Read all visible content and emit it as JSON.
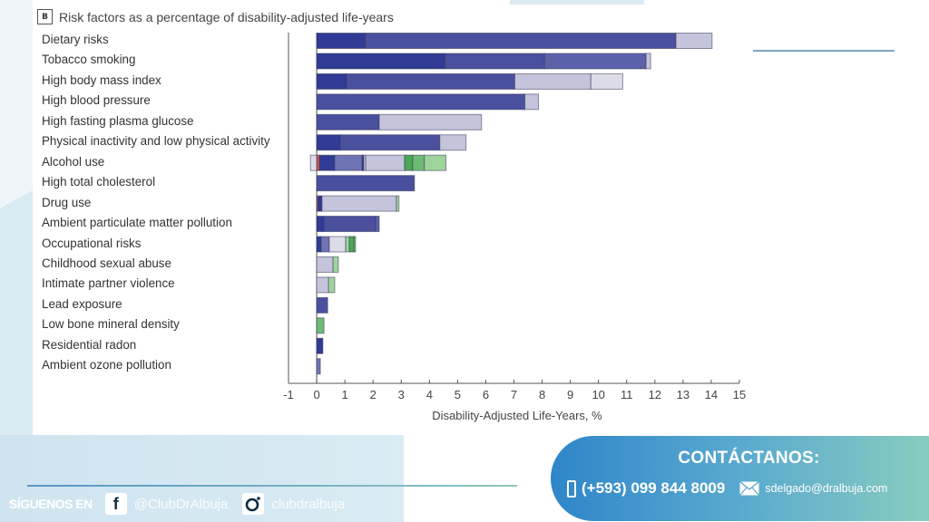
{
  "panel_label": "B",
  "chart_data": {
    "type": "bar",
    "orientation": "horizontal",
    "stacked": true,
    "title": "Risk factors as a percentage of disability-adjusted life-years",
    "xlabel": "Disability-Adjusted Life-Years, %",
    "ylabel": "",
    "xlim": [
      -1,
      15
    ],
    "xticks": [
      "-1",
      "0",
      "1",
      "2",
      "3",
      "4",
      "5",
      "6",
      "7",
      "8",
      "9",
      "10",
      "11",
      "12",
      "13",
      "14",
      "15"
    ],
    "grid": false,
    "categories": [
      "Dietary risks",
      "Tobacco smoking",
      "High body mass index",
      "High blood pressure",
      "High fasting plasma glucose",
      "Physical inactivity and low physical activity",
      "Alcohol use",
      "High total cholesterol",
      "Drug use",
      "Ambient particulate matter pollution",
      "Occupational risks",
      "Childhood sexual abuse",
      "Intimate partner violence",
      "Lead exposure",
      "Low bone mineral density",
      "Residential radon",
      "Ambient ozone pollution"
    ],
    "colors": {
      "dark_blue": "#2f3b94",
      "blue": "#4a4f9e",
      "mid_blue": "#5b62aa",
      "periwinkle": "#6f74b4",
      "lavender": "#c4c4dc",
      "light_lavender": "#dcdce8",
      "red": "#d0524a",
      "green": "#4aa856",
      "mid_green": "#6dbb74",
      "light_green": "#9fd39c"
    },
    "segments": [
      [
        {
          "from": 0,
          "to": 1.73,
          "color": "dark_blue"
        },
        {
          "from": 1.73,
          "to": 12.75,
          "color": "blue"
        },
        {
          "from": 12.75,
          "to": 14.03,
          "color": "lavender"
        }
      ],
      [
        {
          "from": 0,
          "to": 4.56,
          "color": "dark_blue"
        },
        {
          "from": 4.56,
          "to": 8.09,
          "color": "blue"
        },
        {
          "from": 8.09,
          "to": 11.69,
          "color": "mid_blue"
        },
        {
          "from": 11.69,
          "to": 11.85,
          "color": "lavender"
        }
      ],
      [
        {
          "from": 0,
          "to": 1.06,
          "color": "dark_blue"
        },
        {
          "from": 1.06,
          "to": 7.03,
          "color": "blue"
        },
        {
          "from": 7.03,
          "to": 9.73,
          "color": "lavender"
        },
        {
          "from": 9.73,
          "to": 10.86,
          "color": "light_lavender"
        }
      ],
      [
        {
          "from": 0,
          "to": 7.39,
          "color": "blue"
        },
        {
          "from": 7.39,
          "to": 7.87,
          "color": "lavender"
        }
      ],
      [
        {
          "from": 0,
          "to": 2.22,
          "color": "blue"
        },
        {
          "from": 2.22,
          "to": 5.85,
          "color": "lavender"
        }
      ],
      [
        {
          "from": 0,
          "to": 0.84,
          "color": "dark_blue"
        },
        {
          "from": 0.84,
          "to": 4.37,
          "color": "blue"
        },
        {
          "from": 4.37,
          "to": 5.3,
          "color": "lavender"
        }
      ],
      [
        {
          "from": -0.22,
          "to": 0,
          "color": "light_lavender"
        },
        {
          "from": 0,
          "to": 0.1,
          "color": "red"
        },
        {
          "from": 0.1,
          "to": 0.64,
          "color": "dark_blue"
        },
        {
          "from": 0.64,
          "to": 1.61,
          "color": "periwinkle"
        },
        {
          "from": 1.61,
          "to": 1.67,
          "color": "dark_blue"
        },
        {
          "from": 1.67,
          "to": 1.74,
          "color": "lavender"
        },
        {
          "from": 1.74,
          "to": 3.12,
          "color": "lavender"
        },
        {
          "from": 3.12,
          "to": 3.41,
          "color": "green"
        },
        {
          "from": 3.41,
          "to": 3.82,
          "color": "mid_green"
        },
        {
          "from": 3.82,
          "to": 4.59,
          "color": "light_green"
        }
      ],
      [
        {
          "from": 0,
          "to": 3.47,
          "color": "blue"
        }
      ],
      [
        {
          "from": 0,
          "to": 0.04,
          "color": "red"
        },
        {
          "from": 0.04,
          "to": 0.19,
          "color": "dark_blue"
        },
        {
          "from": 0.19,
          "to": 2.83,
          "color": "lavender"
        },
        {
          "from": 2.83,
          "to": 2.92,
          "color": "light_green"
        }
      ],
      [
        {
          "from": 0,
          "to": 0.26,
          "color": "dark_blue"
        },
        {
          "from": 0.26,
          "to": 2.09,
          "color": "blue"
        },
        {
          "from": 2.09,
          "to": 2.22,
          "color": "mid_blue"
        }
      ],
      [
        {
          "from": 0,
          "to": 0.16,
          "color": "dark_blue"
        },
        {
          "from": 0.16,
          "to": 0.45,
          "color": "periwinkle"
        },
        {
          "from": 0.45,
          "to": 1.03,
          "color": "light_lavender"
        },
        {
          "from": 1.03,
          "to": 1.16,
          "color": "light_green"
        },
        {
          "from": 1.16,
          "to": 1.32,
          "color": "green"
        },
        {
          "from": 1.32,
          "to": 1.38,
          "color": "mid_green"
        }
      ],
      [
        {
          "from": 0,
          "to": 0.58,
          "color": "lavender"
        },
        {
          "from": 0.58,
          "to": 0.77,
          "color": "light_green"
        }
      ],
      [
        {
          "from": 0,
          "to": 0.42,
          "color": "lavender"
        },
        {
          "from": 0.42,
          "to": 0.64,
          "color": "light_green"
        }
      ],
      [
        {
          "from": 0,
          "to": 0.39,
          "color": "blue"
        }
      ],
      [
        {
          "from": 0,
          "to": 0.26,
          "color": "mid_green"
        }
      ],
      [
        {
          "from": 0,
          "to": 0.22,
          "color": "dark_blue"
        }
      ],
      [
        {
          "from": 0,
          "to": 0.13,
          "color": "periwinkle"
        }
      ]
    ],
    "totals": [
      14.03,
      11.85,
      10.86,
      7.87,
      5.85,
      5.3,
      4.59,
      3.47,
      2.92,
      2.22,
      1.38,
      0.77,
      0.64,
      0.39,
      0.26,
      0.22,
      0.13
    ]
  },
  "footer": {
    "follow_label": "SÍGUENOS EN",
    "facebook_icon": "facebook-icon",
    "facebook_handle": "@ClubDrAlbuja",
    "instagram_icon": "instagram-icon",
    "instagram_handle": "clubdralbuja"
  },
  "contact": {
    "heading": "CONTÁCTANOS:",
    "phone_icon": "phone-icon",
    "phone": "(+593) 099 844 8009",
    "mail_icon": "mail-icon",
    "email": "sdelgado@dralbuja.com"
  }
}
